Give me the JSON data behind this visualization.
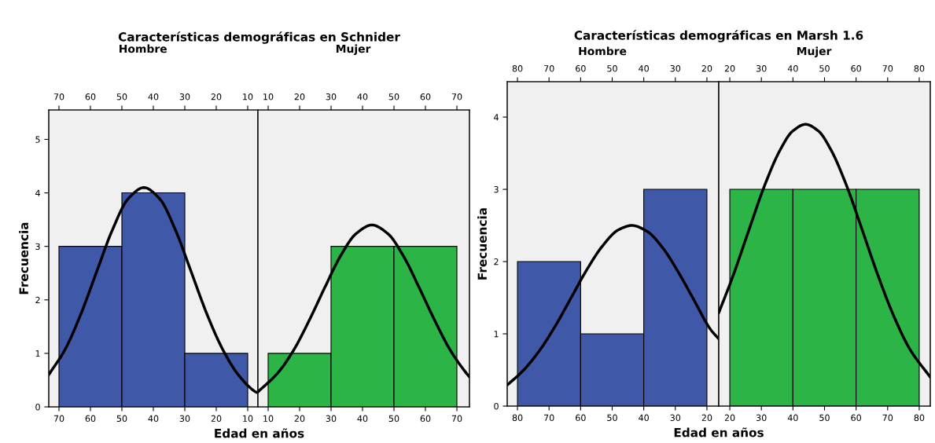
{
  "chart_data": [
    {
      "type": "histogram",
      "title": "Características demográficas en Schnider",
      "subtitle": "Hombre",
      "ylabel": "Frecuencia",
      "xlabel": "Edad en años",
      "xlim": [
        73.25,
        6.75
      ],
      "xticks": [
        70,
        60,
        50,
        40,
        30,
        20,
        10
      ],
      "x2lim": [
        73.25,
        6.75
      ],
      "x2ticks": [
        70,
        60,
        50,
        40,
        30,
        20,
        10
      ],
      "ylim": [
        0,
        5.55
      ],
      "yticks": [
        0,
        1,
        2,
        3,
        4,
        5
      ],
      "grid": false,
      "legend": false,
      "series": [
        {
          "color": "#3f58a8",
          "bins": [
            70,
            50,
            30,
            10
          ],
          "values": [
            3,
            4,
            1
          ]
        },
        {
          "type": "line",
          "color": "#000000",
          "x": [
            73.25,
            68,
            63,
            58,
            53,
            48,
            43,
            38,
            33,
            28,
            23,
            18,
            13,
            8,
            6.75
          ],
          "values": [
            0.6,
            1.08,
            1.74,
            2.53,
            3.31,
            3.89,
            4.1,
            3.89,
            3.31,
            2.53,
            1.74,
            1.08,
            0.6,
            0.3,
            0.26
          ]
        }
      ]
    },
    {
      "type": "histogram",
      "subtitle": "Mujer",
      "xlim": [
        6.75,
        74
      ],
      "xticks": [
        10,
        20,
        30,
        40,
        50,
        60,
        70
      ],
      "x2lim": [
        6.75,
        74
      ],
      "x2ticks": [
        10,
        20,
        30,
        40,
        50,
        60,
        70
      ],
      "ylim": [
        0,
        5.55
      ],
      "tick_labels": "x",
      "grid": false,
      "legend": false,
      "series": [
        {
          "color": "#2db446",
          "bins": [
            10,
            30,
            50,
            70
          ],
          "values": [
            1,
            3,
            3
          ]
        },
        {
          "type": "line",
          "color": "#000000",
          "x": [
            6.75,
            13,
            18,
            23,
            28,
            33,
            38,
            43,
            48,
            53,
            58,
            63,
            68,
            73,
            74
          ],
          "values": [
            0.28,
            0.63,
            1.05,
            1.61,
            2.23,
            2.82,
            3.24,
            3.4,
            3.24,
            2.82,
            2.23,
            1.61,
            1.05,
            0.63,
            0.56
          ]
        }
      ]
    },
    {
      "type": "histogram",
      "title": "Características demográficas en Marsh 1.6",
      "subtitle": "Hombre",
      "ylabel": "Frecuencia",
      "xlabel": "Edad en años",
      "xlim": [
        83.25,
        16.25
      ],
      "xticks": [
        80,
        70,
        60,
        50,
        40,
        30,
        20
      ],
      "x2lim": [
        83.25,
        16.25
      ],
      "x2ticks": [
        80,
        70,
        60,
        50,
        40,
        30,
        20
      ],
      "ylim": [
        0,
        4.49
      ],
      "yticks": [
        0,
        1,
        2,
        3,
        4
      ],
      "grid": false,
      "legend": false,
      "series": [
        {
          "color": "#3f58a8",
          "bins": [
            80,
            60,
            40,
            20
          ],
          "values": [
            2,
            1,
            3
          ]
        },
        {
          "type": "line",
          "color": "#000000",
          "x": [
            83.25,
            78,
            73,
            68,
            63,
            58,
            53,
            48,
            43.75,
            39,
            34,
            29,
            24,
            19,
            16.25
          ],
          "values": [
            0.29,
            0.5,
            0.77,
            1.11,
            1.5,
            1.89,
            2.22,
            2.44,
            2.5,
            2.42,
            2.19,
            1.85,
            1.46,
            1.07,
            0.93
          ]
        }
      ]
    },
    {
      "type": "histogram",
      "subtitle": "Mujer",
      "xlim": [
        16.5,
        83.5
      ],
      "xticks": [
        20,
        30,
        40,
        50,
        60,
        70,
        80
      ],
      "x2lim": [
        16.5,
        83.5
      ],
      "x2ticks": [
        20,
        30,
        40,
        50,
        60,
        70,
        80
      ],
      "ylim": [
        0,
        4.49
      ],
      "tick_labels": "x",
      "grid": false,
      "legend": false,
      "series": [
        {
          "color": "#2db446",
          "bins": [
            20,
            40,
            60,
            80
          ],
          "values": [
            3,
            3,
            3
          ]
        },
        {
          "type": "line",
          "color": "#000000",
          "x": [
            16.5,
            21,
            26,
            31,
            36,
            40,
            44,
            48,
            52,
            57,
            62,
            67,
            72,
            77,
            83.5
          ],
          "values": [
            1.29,
            1.8,
            2.43,
            3.05,
            3.55,
            3.81,
            3.9,
            3.81,
            3.55,
            3.05,
            2.43,
            1.8,
            1.24,
            0.79,
            0.4
          ]
        }
      ]
    }
  ]
}
